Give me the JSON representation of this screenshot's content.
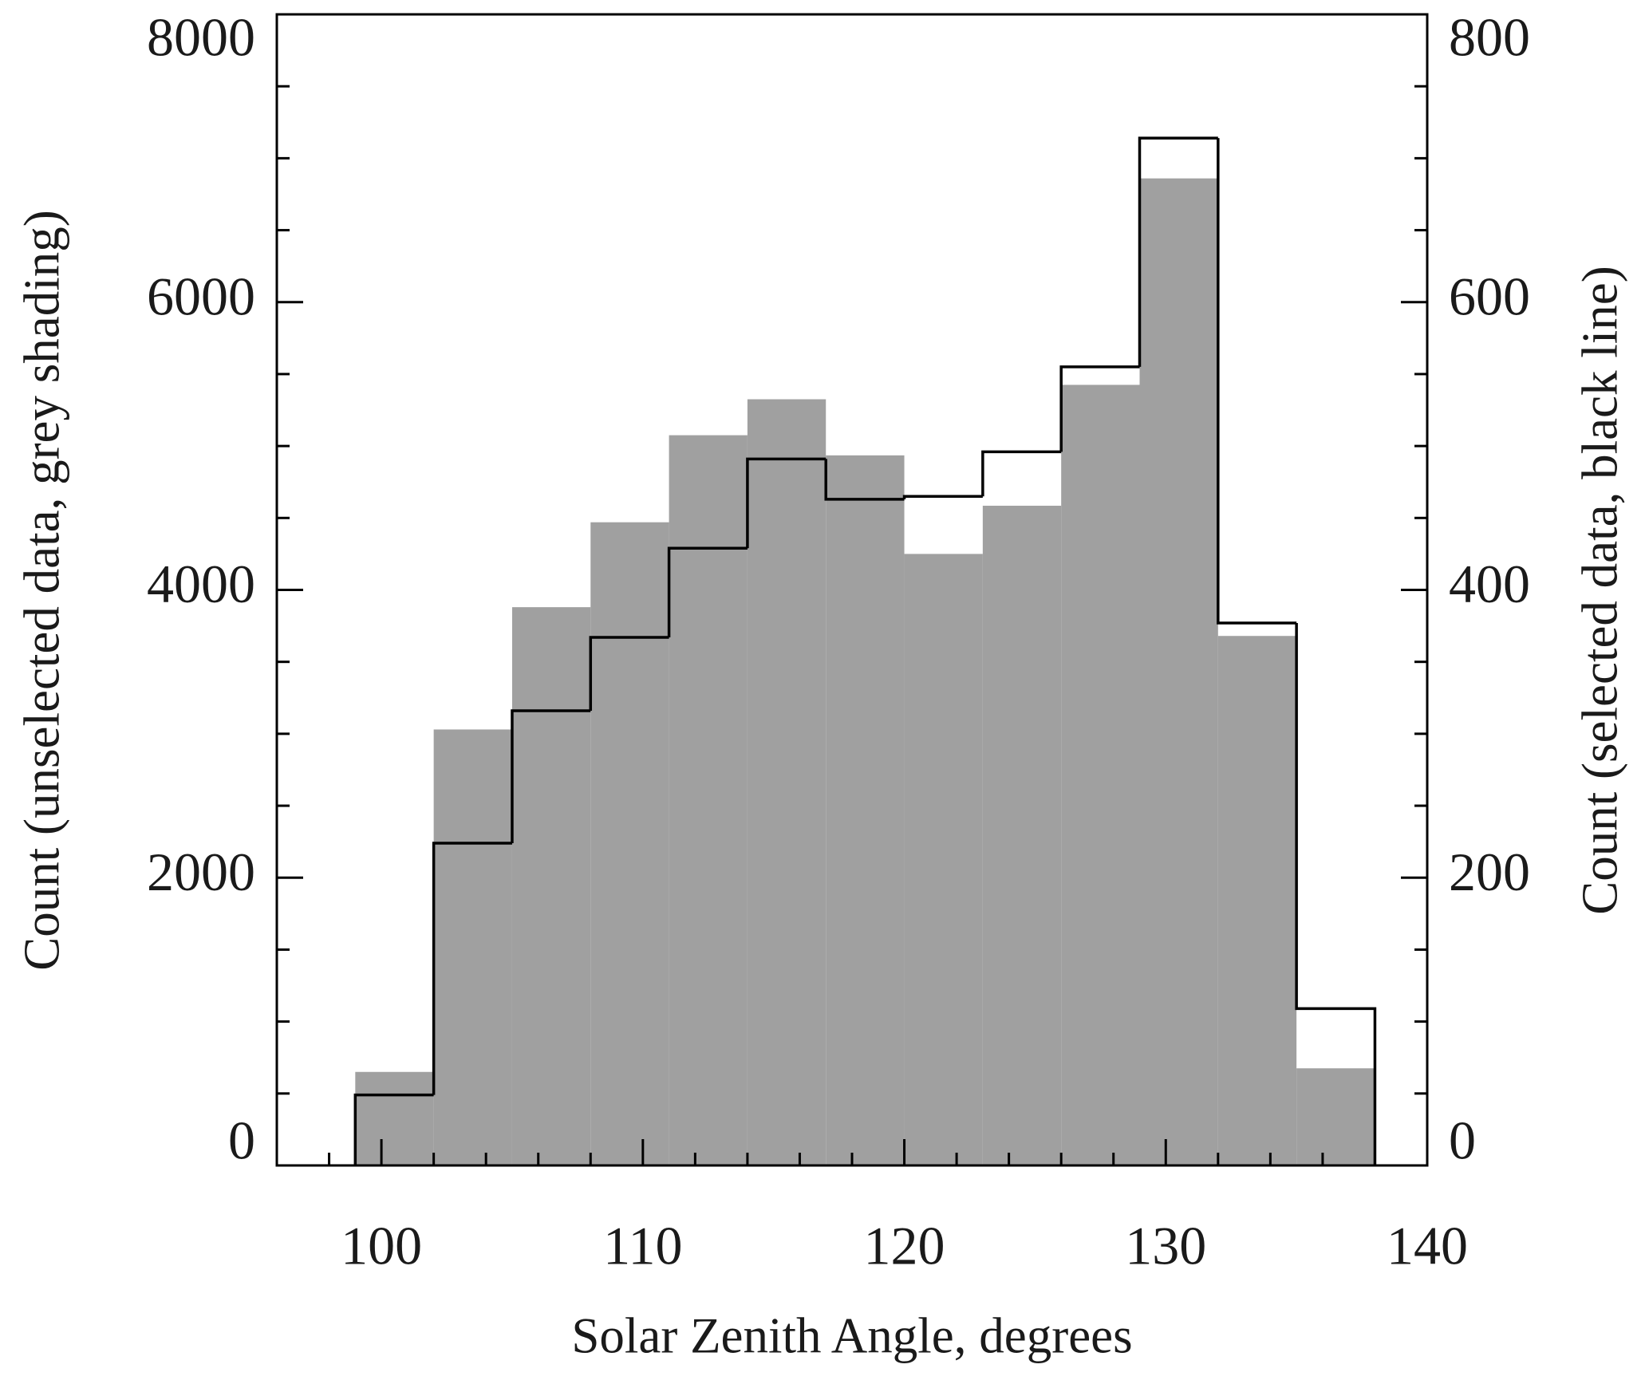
{
  "chart_data": {
    "type": "histogram",
    "xlabel": "Solar Zenith Angle, degrees",
    "ylabel": "Count (unselected data, grey shading)",
    "y2label": "Count (selected data, black line)",
    "bins": [
      99,
      102,
      105,
      108,
      111,
      114,
      117,
      120,
      123,
      126,
      129,
      132,
      135,
      138
    ],
    "series": [
      {
        "color": "#a0a0a0",
        "values": [
          650,
          3030,
          3880,
          4470,
          5075,
          5325,
          4935,
          4250,
          4585,
          5425,
          6860,
          3680,
          675
        ]
      },
      {
        "color": "#000000",
        "axis": "y2",
        "values": [
          49,
          224,
          316,
          367,
          429,
          491,
          463,
          465,
          496,
          555,
          714,
          377,
          109
        ]
      }
    ],
    "xlim": [
      96,
      140
    ],
    "xticks": [
      100,
      110,
      120,
      130,
      140
    ],
    "xticks_minor": [
      96,
      98,
      102,
      104,
      106,
      108,
      112,
      114,
      116,
      118,
      122,
      124,
      126,
      128,
      132,
      134,
      136,
      138
    ],
    "ylim": [
      0,
      8000
    ],
    "yticks": [
      0,
      2000,
      4000,
      6000,
      8000
    ],
    "yticks_minor": [
      500,
      1000,
      1500,
      2500,
      3000,
      3500,
      4500,
      5000,
      5500,
      6500,
      7000,
      7500
    ],
    "y2lim": [
      0,
      800
    ],
    "y2ticks": [
      0,
      200,
      400,
      600,
      800
    ],
    "y2ticks_minor": [
      50,
      100,
      150,
      250,
      300,
      350,
      450,
      500,
      550,
      650,
      700,
      750
    ]
  }
}
